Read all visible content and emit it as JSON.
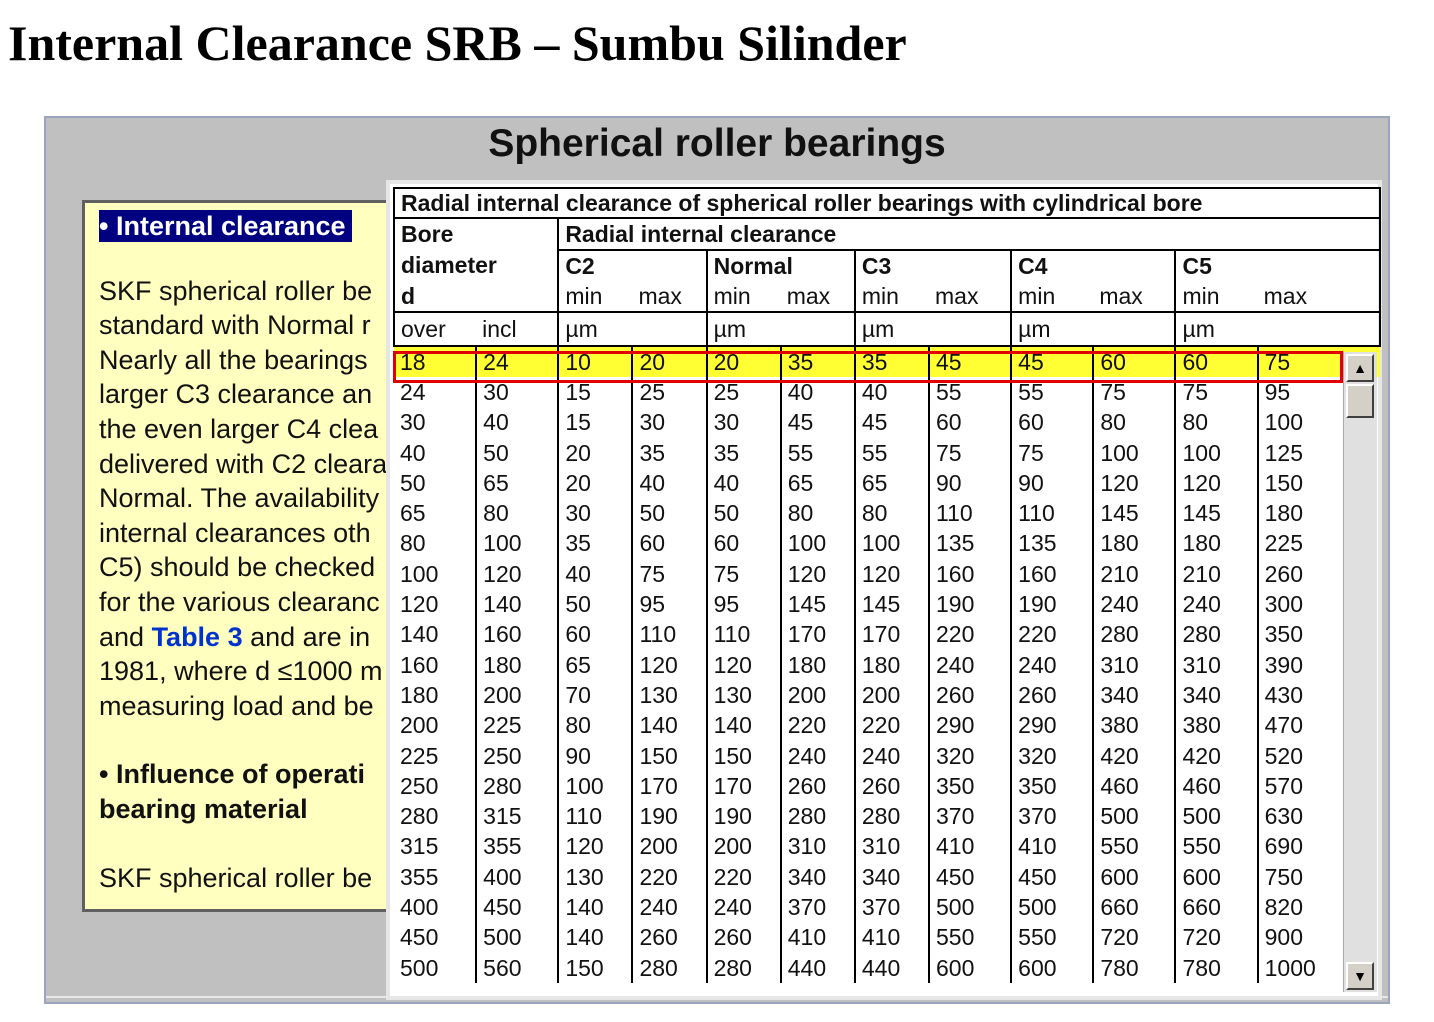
{
  "page_title": "Internal Clearance SRB – Sumbu Silinder",
  "frame_title": "Spherical roller bearings",
  "left_panel": {
    "heading1": "• Internal clearance",
    "lines1": [
      "SKF spherical roller be",
      "standard with Normal r",
      "Nearly all the bearings",
      "larger C3 clearance an",
      "the even larger C4 clea",
      "delivered with C2 cleara",
      "Normal. The availability",
      "internal clearances oth",
      "C5) should be checked"
    ],
    "line10": "for the various clearanc",
    "line11_pre": "and ",
    "line11_link": "Table 3",
    "line11_post": " and are in",
    "line12": "1981, where d ≤1000 m",
    "line13": "measuring load and be",
    "heading2_line1": "• Influence of operati",
    "heading2_line2": "bearing material",
    "line14": "SKF spherical roller be"
  },
  "table": {
    "caption": "Radial internal clearance of spherical roller bearings with cylindrical bore",
    "bore_header": [
      "Bore",
      "diameter",
      "d"
    ],
    "clearance_header": "Radial internal clearance",
    "groups": [
      "C2",
      "Normal",
      "C3",
      "C4",
      "C5"
    ],
    "min_label": "min",
    "max_label": "max",
    "over_label": "over",
    "incl_label": "incl",
    "unit": "µm",
    "rows": [
      [
        "18",
        "24",
        "10",
        "20",
        "20",
        "35",
        "35",
        "45",
        "45",
        "60",
        "60",
        "75"
      ],
      [
        "24",
        "30",
        "15",
        "25",
        "25",
        "40",
        "40",
        "55",
        "55",
        "75",
        "75",
        "95"
      ],
      [
        "30",
        "40",
        "15",
        "30",
        "30",
        "45",
        "45",
        "60",
        "60",
        "80",
        "80",
        "100"
      ],
      [
        "40",
        "50",
        "20",
        "35",
        "35",
        "55",
        "55",
        "75",
        "75",
        "100",
        "100",
        "125"
      ],
      [
        "50",
        "65",
        "20",
        "40",
        "40",
        "65",
        "65",
        "90",
        "90",
        "120",
        "120",
        "150"
      ],
      [
        "65",
        "80",
        "30",
        "50",
        "50",
        "80",
        "80",
        "110",
        "110",
        "145",
        "145",
        "180"
      ],
      [
        "80",
        "100",
        "35",
        "60",
        "60",
        "100",
        "100",
        "135",
        "135",
        "180",
        "180",
        "225"
      ],
      [
        "100",
        "120",
        "40",
        "75",
        "75",
        "120",
        "120",
        "160",
        "160",
        "210",
        "210",
        "260"
      ],
      [
        "120",
        "140",
        "50",
        "95",
        "95",
        "145",
        "145",
        "190",
        "190",
        "240",
        "240",
        "300"
      ],
      [
        "140",
        "160",
        "60",
        "110",
        "110",
        "170",
        "170",
        "220",
        "220",
        "280",
        "280",
        "350"
      ],
      [
        "160",
        "180",
        "65",
        "120",
        "120",
        "180",
        "180",
        "240",
        "240",
        "310",
        "310",
        "390"
      ],
      [
        "180",
        "200",
        "70",
        "130",
        "130",
        "200",
        "200",
        "260",
        "260",
        "340",
        "340",
        "430"
      ],
      [
        "200",
        "225",
        "80",
        "140",
        "140",
        "220",
        "220",
        "290",
        "290",
        "380",
        "380",
        "470"
      ],
      [
        "225",
        "250",
        "90",
        "150",
        "150",
        "240",
        "240",
        "320",
        "320",
        "420",
        "420",
        "520"
      ],
      [
        "250",
        "280",
        "100",
        "170",
        "170",
        "260",
        "260",
        "350",
        "350",
        "460",
        "460",
        "570"
      ],
      [
        "280",
        "315",
        "110",
        "190",
        "190",
        "280",
        "280",
        "370",
        "370",
        "500",
        "500",
        "630"
      ],
      [
        "315",
        "355",
        "120",
        "200",
        "200",
        "310",
        "310",
        "410",
        "410",
        "550",
        "550",
        "690"
      ],
      [
        "355",
        "400",
        "130",
        "220",
        "220",
        "340",
        "340",
        "450",
        "450",
        "600",
        "600",
        "750"
      ],
      [
        "400",
        "450",
        "140",
        "240",
        "240",
        "370",
        "370",
        "500",
        "500",
        "660",
        "660",
        "820"
      ],
      [
        "450",
        "500",
        "140",
        "260",
        "260",
        "410",
        "410",
        "550",
        "550",
        "720",
        "720",
        "900"
      ],
      [
        "500",
        "560",
        "150",
        "280",
        "280",
        "440",
        "440",
        "600",
        "600",
        "780",
        "780",
        "1000"
      ]
    ]
  },
  "scrollbar": {
    "up_glyph": "▲",
    "down_glyph": "▼"
  }
}
